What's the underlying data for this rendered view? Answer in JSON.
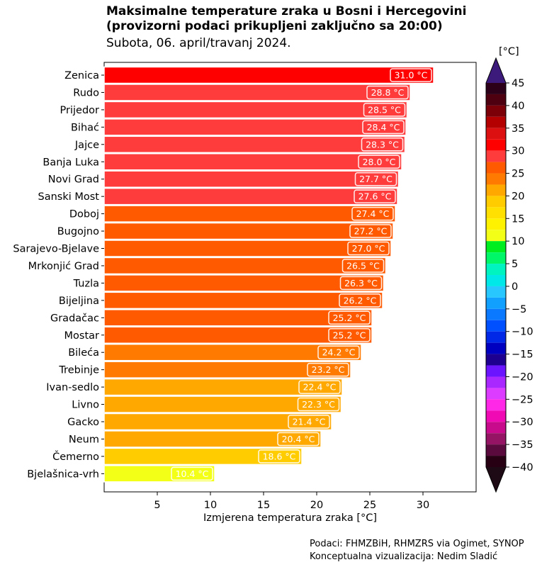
{
  "header": {
    "title_line1": "Maksimalne temperature zraka u Bosni i Hercegovini",
    "title_line2": "(provizorni podaci prikupljeni zaključno sa 20:00)",
    "subtitle": "Subota, 06. april/travanj 2024."
  },
  "credits": {
    "line1": "Podaci: FHMZBiH, RHMZRS via Ogimet, SYNOP",
    "line2": "Konceptualna vizualizacija: Nedim Sladić"
  },
  "chart_data": {
    "type": "bar",
    "orientation": "horizontal",
    "xlabel": "Izmjerena temperatura zraka [°C]",
    "xlim": [
      0,
      35
    ],
    "xticks": [
      5,
      10,
      15,
      20,
      25,
      30
    ],
    "unit": "°C",
    "categories": [
      "Zenica",
      "Rudo",
      "Prijedor",
      "Bihać",
      "Jajce",
      "Banja Luka",
      "Novi Grad",
      "Sanski Most",
      "Doboj",
      "Bugojno",
      "Sarajevo-Bjelave",
      "Mrkonjić Grad",
      "Tuzla",
      "Bijeljina",
      "Gradačac",
      "Mostar",
      "Bileća",
      "Trebinje",
      "Ivan-sedlo",
      "Livno",
      "Gacko",
      "Neum",
      "Čemerno",
      "Bjelašnica-vrh"
    ],
    "values": [
      31.0,
      28.8,
      28.5,
      28.4,
      28.3,
      28.0,
      27.7,
      27.6,
      27.4,
      27.2,
      27.0,
      26.5,
      26.3,
      26.2,
      25.2,
      25.2,
      24.2,
      23.2,
      22.4,
      22.3,
      21.4,
      20.4,
      18.6,
      10.4
    ],
    "value_labels": [
      "31.0 °C",
      "28.8 °C",
      "28.5 °C",
      "28.4 °C",
      "28.3 °C",
      "28.0 °C",
      "27.7 °C",
      "27.6 °C",
      "27.4 °C",
      "27.2 °C",
      "27.0 °C",
      "26.5 °C",
      "26.3 °C",
      "26.2 °C",
      "25.2 °C",
      "25.2 °C",
      "24.2 °C",
      "23.2 °C",
      "22.4 °C",
      "22.3 °C",
      "21.4 °C",
      "20.4 °C",
      "18.6 °C",
      "10.4 °C"
    ],
    "colorbar": {
      "label": "[°C]",
      "range": [
        -40,
        45
      ],
      "ticks": [
        45,
        40,
        35,
        30,
        25,
        20,
        15,
        10,
        5,
        0,
        -5,
        -10,
        -15,
        -20,
        -25,
        -30,
        -35,
        -40
      ],
      "tick_labels": [
        "45",
        "40",
        "35",
        "30",
        "25",
        "20",
        "15",
        "10",
        "5",
        "0",
        "−5",
        "−10",
        "−15",
        "−20",
        "−25",
        "−30",
        "−35",
        "−40"
      ],
      "levels": [
        {
          "from": 42.5,
          "to": 45.0,
          "color": "#2c0018"
        },
        {
          "from": 40.0,
          "to": 42.5,
          "color": "#4e0010"
        },
        {
          "from": 37.5,
          "to": 40.0,
          "color": "#7c0008"
        },
        {
          "from": 35.0,
          "to": 37.5,
          "color": "#b40000"
        },
        {
          "from": 32.5,
          "to": 35.0,
          "color": "#dc1010"
        },
        {
          "from": 30.0,
          "to": 32.5,
          "color": "#ff0000"
        },
        {
          "from": 27.5,
          "to": 30.0,
          "color": "#ff3c3c"
        },
        {
          "from": 25.0,
          "to": 27.5,
          "color": "#ff5a00"
        },
        {
          "from": 22.5,
          "to": 25.0,
          "color": "#ff7a00"
        },
        {
          "from": 20.0,
          "to": 22.5,
          "color": "#ffa800"
        },
        {
          "from": 17.5,
          "to": 20.0,
          "color": "#ffcc00"
        },
        {
          "from": 15.0,
          "to": 17.5,
          "color": "#ffe000"
        },
        {
          "from": 12.5,
          "to": 15.0,
          "color": "#fff200"
        },
        {
          "from": 10.0,
          "to": 12.5,
          "color": "#f4ff18"
        },
        {
          "from": 7.5,
          "to": 10.0,
          "color": "#00ee20"
        },
        {
          "from": 5.0,
          "to": 7.5,
          "color": "#00f868"
        },
        {
          "from": 2.5,
          "to": 5.0,
          "color": "#00f4c0"
        },
        {
          "from": 0.0,
          "to": 2.5,
          "color": "#00e8e8"
        },
        {
          "from": -2.5,
          "to": 0.0,
          "color": "#28c8ff"
        },
        {
          "from": -5.0,
          "to": -2.5,
          "color": "#12a0ff"
        },
        {
          "from": -7.5,
          "to": -5.0,
          "color": "#0a78ff"
        },
        {
          "from": -10.0,
          "to": -7.5,
          "color": "#0050ff"
        },
        {
          "from": -12.5,
          "to": -10.0,
          "color": "#0028e6"
        },
        {
          "from": -15.0,
          "to": -12.5,
          "color": "#0000c0"
        },
        {
          "from": -17.5,
          "to": -15.0,
          "color": "#1e0090"
        },
        {
          "from": -20.0,
          "to": -17.5,
          "color": "#6a14ff"
        },
        {
          "from": -22.5,
          "to": -20.0,
          "color": "#a828ff"
        },
        {
          "from": -25.0,
          "to": -22.5,
          "color": "#dc3cff"
        },
        {
          "from": -27.5,
          "to": -25.0,
          "color": "#ff28e6"
        },
        {
          "from": -30.0,
          "to": -27.5,
          "color": "#f00ab4"
        },
        {
          "from": -32.5,
          "to": -30.0,
          "color": "#c80a8c"
        },
        {
          "from": -35.0,
          "to": -32.5,
          "color": "#961464"
        },
        {
          "from": -37.5,
          "to": -35.0,
          "color": "#5a0a3c"
        },
        {
          "from": -40.0,
          "to": -37.5,
          "color": "#280014"
        }
      ],
      "over_color": "#3c1a7c",
      "under_color": "#1e0a14"
    }
  }
}
